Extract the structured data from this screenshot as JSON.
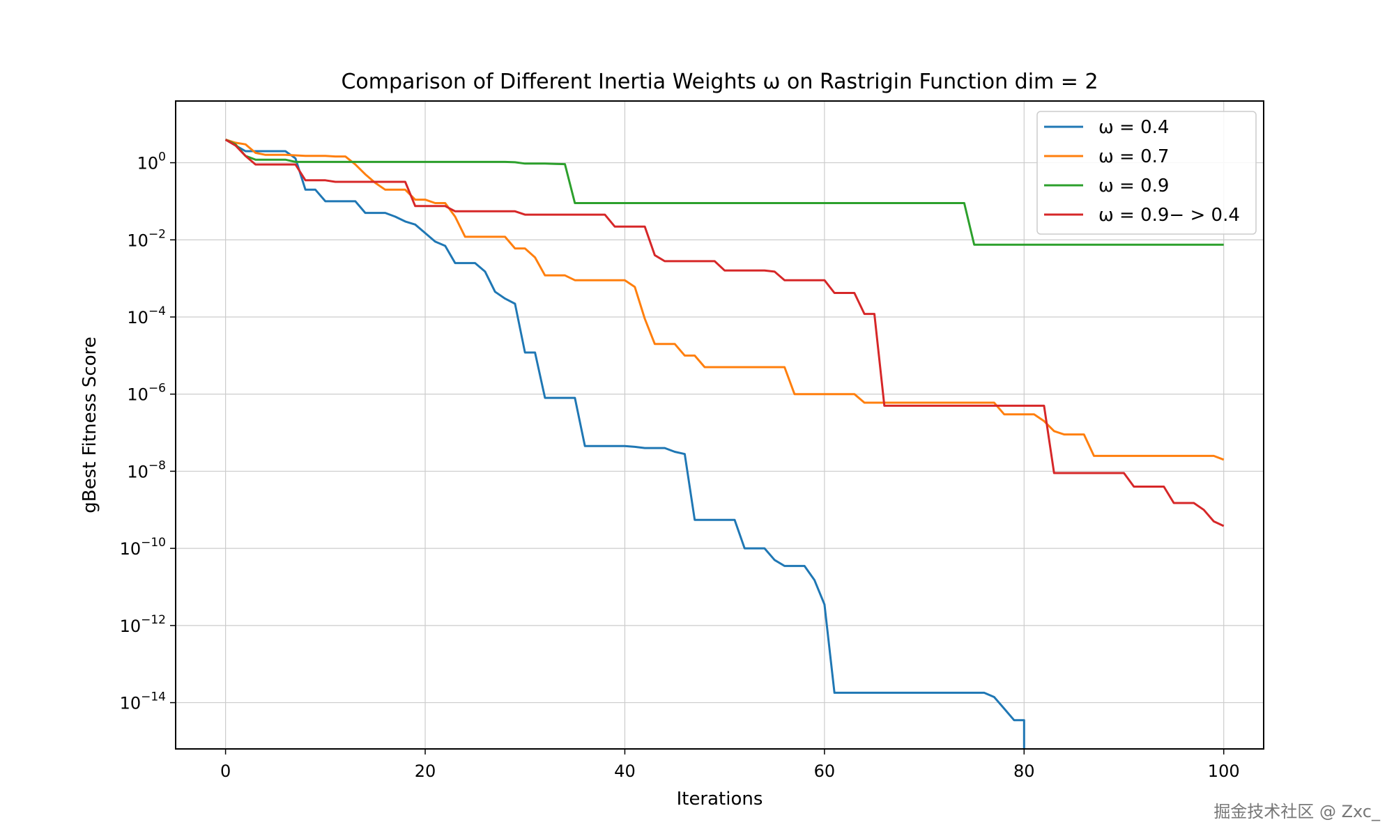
{
  "chart_data": {
    "type": "line",
    "title": "Comparison of Different Inertia Weights ω on Rastrigin Function dim = 2",
    "xlabel": "Iterations",
    "ylabel": "gBest Fitness Score",
    "xlim": [
      -5,
      104
    ],
    "ylim_log10": [
      -15.2,
      1.6
    ],
    "y_scale": "log",
    "grid": true,
    "legend_position": "top-right",
    "x_ticks": [
      0,
      20,
      40,
      60,
      80,
      100
    ],
    "y_ticks": [
      {
        "base": "10",
        "exp": "0",
        "value": 1
      },
      {
        "base": "10",
        "exp": "−2",
        "value": 0.01
      },
      {
        "base": "10",
        "exp": "−4",
        "value": 0.0001
      },
      {
        "base": "10",
        "exp": "−6",
        "value": 1e-06
      },
      {
        "base": "10",
        "exp": "−8",
        "value": 1e-08
      },
      {
        "base": "10",
        "exp": "−10",
        "value": 1e-10
      },
      {
        "base": "10",
        "exp": "−12",
        "value": 1e-12
      },
      {
        "base": "10",
        "exp": "−14",
        "value": 1e-14
      }
    ],
    "series": [
      {
        "name": "ω = 0.4",
        "color": "#1f77b4",
        "points": [
          [
            0,
            3.98
          ],
          [
            1,
            2.8
          ],
          [
            2,
            1.99
          ],
          [
            3,
            1.99
          ],
          [
            4,
            1.99
          ],
          [
            5,
            1.99
          ],
          [
            6,
            1.99
          ],
          [
            7,
            1.3
          ],
          [
            8,
            0.2
          ],
          [
            9,
            0.2
          ],
          [
            10,
            0.1
          ],
          [
            11,
            0.1
          ],
          [
            12,
            0.1
          ],
          [
            13,
            0.1
          ],
          [
            14,
            0.05
          ],
          [
            15,
            0.05
          ],
          [
            16,
            0.05
          ],
          [
            17,
            0.04
          ],
          [
            18,
            0.03
          ],
          [
            19,
            0.025
          ],
          [
            20,
            0.015
          ],
          [
            21,
            0.009
          ],
          [
            22,
            0.007
          ],
          [
            23,
            0.0025
          ],
          [
            24,
            0.0025
          ],
          [
            25,
            0.0025
          ],
          [
            26,
            0.0015
          ],
          [
            27,
            0.00045
          ],
          [
            28,
            0.0003
          ],
          [
            29,
            0.00022
          ],
          [
            30,
            1.2e-05
          ],
          [
            31,
            1.2e-05
          ],
          [
            32,
            8e-07
          ],
          [
            33,
            8e-07
          ],
          [
            34,
            8e-07
          ],
          [
            35,
            8e-07
          ],
          [
            36,
            4.5e-08
          ],
          [
            37,
            4.5e-08
          ],
          [
            38,
            4.5e-08
          ],
          [
            39,
            4.5e-08
          ],
          [
            40,
            4.5e-08
          ],
          [
            41,
            4.3e-08
          ],
          [
            42,
            4e-08
          ],
          [
            43,
            4e-08
          ],
          [
            44,
            4e-08
          ],
          [
            45,
            3.2e-08
          ],
          [
            46,
            2.8e-08
          ],
          [
            47,
            5.5e-10
          ],
          [
            48,
            5.5e-10
          ],
          [
            49,
            5.5e-10
          ],
          [
            50,
            5.5e-10
          ],
          [
            51,
            5.5e-10
          ],
          [
            52,
            1e-10
          ],
          [
            53,
            1e-10
          ],
          [
            54,
            1e-10
          ],
          [
            55,
            5e-11
          ],
          [
            56,
            3.5e-11
          ],
          [
            57,
            3.5e-11
          ],
          [
            58,
            3.5e-11
          ],
          [
            59,
            1.5e-11
          ],
          [
            60,
            3.5e-12
          ],
          [
            61,
            1.8e-14
          ],
          [
            62,
            1.8e-14
          ],
          [
            63,
            1.8e-14
          ],
          [
            64,
            1.8e-14
          ],
          [
            65,
            1.8e-14
          ],
          [
            66,
            1.8e-14
          ],
          [
            67,
            1.8e-14
          ],
          [
            68,
            1.8e-14
          ],
          [
            69,
            1.8e-14
          ],
          [
            70,
            1.8e-14
          ],
          [
            71,
            1.8e-14
          ],
          [
            72,
            1.8e-14
          ],
          [
            73,
            1.8e-14
          ],
          [
            74,
            1.8e-14
          ],
          [
            75,
            1.8e-14
          ],
          [
            76,
            1.8e-14
          ],
          [
            77,
            1.4e-14
          ],
          [
            78,
            7e-15
          ],
          [
            79,
            3.5e-15
          ],
          [
            80,
            3.5e-15
          ],
          [
            80,
            6e-16
          ]
        ]
      },
      {
        "name": "ω = 0.7",
        "color": "#ff7f0e",
        "points": [
          [
            0,
            3.98
          ],
          [
            1,
            3.3
          ],
          [
            2,
            3.0
          ],
          [
            3,
            1.8
          ],
          [
            4,
            1.6
          ],
          [
            5,
            1.6
          ],
          [
            6,
            1.6
          ],
          [
            7,
            1.55
          ],
          [
            8,
            1.5
          ],
          [
            9,
            1.5
          ],
          [
            10,
            1.5
          ],
          [
            11,
            1.45
          ],
          [
            12,
            1.45
          ],
          [
            13,
            0.9
          ],
          [
            14,
            0.5
          ],
          [
            15,
            0.3
          ],
          [
            16,
            0.2
          ],
          [
            17,
            0.2
          ],
          [
            18,
            0.2
          ],
          [
            19,
            0.11
          ],
          [
            20,
            0.11
          ],
          [
            21,
            0.09
          ],
          [
            22,
            0.09
          ],
          [
            23,
            0.04
          ],
          [
            24,
            0.012
          ],
          [
            25,
            0.012
          ],
          [
            26,
            0.012
          ],
          [
            27,
            0.012
          ],
          [
            28,
            0.012
          ],
          [
            29,
            0.006
          ],
          [
            30,
            0.006
          ],
          [
            31,
            0.0035
          ],
          [
            32,
            0.0012
          ],
          [
            33,
            0.0012
          ],
          [
            34,
            0.0012
          ],
          [
            35,
            0.0009
          ],
          [
            36,
            0.0009
          ],
          [
            37,
            0.0009
          ],
          [
            38,
            0.0009
          ],
          [
            39,
            0.0009
          ],
          [
            40,
            0.0009
          ],
          [
            41,
            0.0006
          ],
          [
            42,
            9e-05
          ],
          [
            43,
            2e-05
          ],
          [
            44,
            2e-05
          ],
          [
            45,
            2e-05
          ],
          [
            46,
            1e-05
          ],
          [
            47,
            1e-05
          ],
          [
            48,
            5e-06
          ],
          [
            49,
            5e-06
          ],
          [
            50,
            5e-06
          ],
          [
            51,
            5e-06
          ],
          [
            52,
            5e-06
          ],
          [
            53,
            5e-06
          ],
          [
            54,
            5e-06
          ],
          [
            55,
            5e-06
          ],
          [
            56,
            5e-06
          ],
          [
            57,
            1e-06
          ],
          [
            58,
            1e-06
          ],
          [
            59,
            1e-06
          ],
          [
            60,
            1e-06
          ],
          [
            61,
            1e-06
          ],
          [
            62,
            1e-06
          ],
          [
            63,
            1e-06
          ],
          [
            64,
            6e-07
          ],
          [
            65,
            6e-07
          ],
          [
            66,
            6e-07
          ],
          [
            67,
            6e-07
          ],
          [
            68,
            6e-07
          ],
          [
            69,
            6e-07
          ],
          [
            70,
            6e-07
          ],
          [
            71,
            6e-07
          ],
          [
            72,
            6e-07
          ],
          [
            73,
            6e-07
          ],
          [
            74,
            6e-07
          ],
          [
            75,
            6e-07
          ],
          [
            76,
            6e-07
          ],
          [
            77,
            6e-07
          ],
          [
            78,
            3e-07
          ],
          [
            79,
            3e-07
          ],
          [
            80,
            3e-07
          ],
          [
            81,
            3e-07
          ],
          [
            82,
            2e-07
          ],
          [
            83,
            1.1e-07
          ],
          [
            84,
            9e-08
          ],
          [
            85,
            9e-08
          ],
          [
            86,
            9e-08
          ],
          [
            87,
            2.5e-08
          ],
          [
            88,
            2.5e-08
          ],
          [
            89,
            2.5e-08
          ],
          [
            90,
            2.5e-08
          ],
          [
            91,
            2.5e-08
          ],
          [
            92,
            2.5e-08
          ],
          [
            93,
            2.5e-08
          ],
          [
            94,
            2.5e-08
          ],
          [
            95,
            2.5e-08
          ],
          [
            96,
            2.5e-08
          ],
          [
            97,
            2.5e-08
          ],
          [
            98,
            2.5e-08
          ],
          [
            99,
            2.5e-08
          ],
          [
            100,
            2e-08
          ]
        ]
      },
      {
        "name": "ω = 0.9",
        "color": "#2ca02c",
        "points": [
          [
            0,
            3.98
          ],
          [
            1,
            3.0
          ],
          [
            2,
            1.5
          ],
          [
            3,
            1.2
          ],
          [
            4,
            1.2
          ],
          [
            5,
            1.2
          ],
          [
            6,
            1.2
          ],
          [
            7,
            1.05
          ],
          [
            8,
            1.05
          ],
          [
            9,
            1.05
          ],
          [
            10,
            1.05
          ],
          [
            15,
            1.05
          ],
          [
            20,
            1.05
          ],
          [
            25,
            1.05
          ],
          [
            28,
            1.05
          ],
          [
            29,
            1.03
          ],
          [
            30,
            0.95
          ],
          [
            31,
            0.95
          ],
          [
            32,
            0.95
          ],
          [
            33,
            0.93
          ],
          [
            34,
            0.92
          ],
          [
            35,
            0.09
          ],
          [
            40,
            0.09
          ],
          [
            50,
            0.09
          ],
          [
            60,
            0.09
          ],
          [
            70,
            0.09
          ],
          [
            74,
            0.09
          ],
          [
            75,
            0.0075
          ],
          [
            80,
            0.0075
          ],
          [
            90,
            0.0075
          ],
          [
            100,
            0.0075
          ]
        ]
      },
      {
        "name": "ω = 0.9− > 0.4",
        "color": "#d62728",
        "points": [
          [
            0,
            3.98
          ],
          [
            1,
            2.8
          ],
          [
            2,
            1.5
          ],
          [
            3,
            0.9
          ],
          [
            4,
            0.9
          ],
          [
            5,
            0.9
          ],
          [
            6,
            0.9
          ],
          [
            7,
            0.9
          ],
          [
            8,
            0.35
          ],
          [
            9,
            0.35
          ],
          [
            10,
            0.35
          ],
          [
            11,
            0.32
          ],
          [
            12,
            0.32
          ],
          [
            13,
            0.32
          ],
          [
            14,
            0.32
          ],
          [
            15,
            0.32
          ],
          [
            16,
            0.32
          ],
          [
            17,
            0.32
          ],
          [
            18,
            0.32
          ],
          [
            19,
            0.075
          ],
          [
            20,
            0.075
          ],
          [
            21,
            0.075
          ],
          [
            22,
            0.075
          ],
          [
            23,
            0.055
          ],
          [
            24,
            0.055
          ],
          [
            25,
            0.055
          ],
          [
            26,
            0.055
          ],
          [
            27,
            0.055
          ],
          [
            28,
            0.055
          ],
          [
            29,
            0.055
          ],
          [
            30,
            0.045
          ],
          [
            31,
            0.045
          ],
          [
            32,
            0.045
          ],
          [
            33,
            0.045
          ],
          [
            34,
            0.045
          ],
          [
            35,
            0.045
          ],
          [
            36,
            0.045
          ],
          [
            37,
            0.045
          ],
          [
            38,
            0.045
          ],
          [
            39,
            0.022
          ],
          [
            40,
            0.022
          ],
          [
            41,
            0.022
          ],
          [
            42,
            0.022
          ],
          [
            43,
            0.004
          ],
          [
            44,
            0.0028
          ],
          [
            45,
            0.0028
          ],
          [
            46,
            0.0028
          ],
          [
            47,
            0.0028
          ],
          [
            48,
            0.0028
          ],
          [
            49,
            0.0028
          ],
          [
            50,
            0.0016
          ],
          [
            51,
            0.0016
          ],
          [
            52,
            0.0016
          ],
          [
            53,
            0.0016
          ],
          [
            54,
            0.0016
          ],
          [
            55,
            0.0015
          ],
          [
            56,
            0.0009
          ],
          [
            57,
            0.0009
          ],
          [
            58,
            0.0009
          ],
          [
            59,
            0.0009
          ],
          [
            60,
            0.0009
          ],
          [
            61,
            0.00042
          ],
          [
            62,
            0.00042
          ],
          [
            63,
            0.00042
          ],
          [
            64,
            0.00012
          ],
          [
            65,
            0.00012
          ],
          [
            66,
            5e-07
          ],
          [
            67,
            5e-07
          ],
          [
            70,
            5e-07
          ],
          [
            75,
            5e-07
          ],
          [
            80,
            5e-07
          ],
          [
            82,
            5e-07
          ],
          [
            83,
            9e-09
          ],
          [
            84,
            9e-09
          ],
          [
            85,
            9e-09
          ],
          [
            86,
            9e-09
          ],
          [
            87,
            9e-09
          ],
          [
            88,
            9e-09
          ],
          [
            89,
            9e-09
          ],
          [
            90,
            9e-09
          ],
          [
            91,
            4e-09
          ],
          [
            92,
            4e-09
          ],
          [
            93,
            4e-09
          ],
          [
            94,
            4e-09
          ],
          [
            95,
            1.5e-09
          ],
          [
            96,
            1.5e-09
          ],
          [
            97,
            1.5e-09
          ],
          [
            98,
            1e-09
          ],
          [
            99,
            5e-10
          ],
          [
            100,
            3.8e-10
          ]
        ]
      }
    ]
  },
  "watermark": "掘金技术社区 @ Zxc_"
}
